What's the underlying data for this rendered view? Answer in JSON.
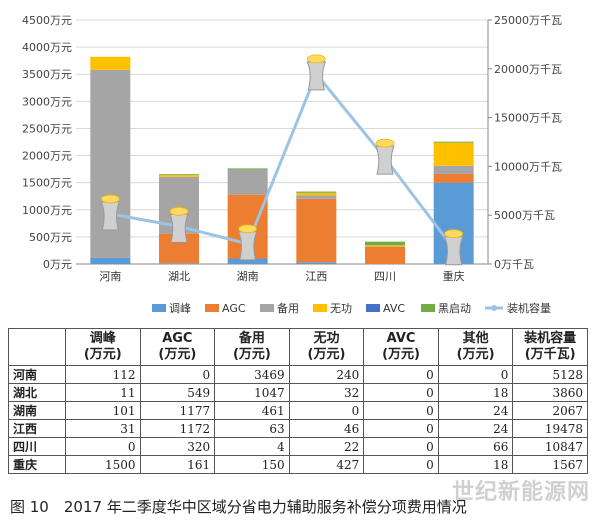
{
  "chart_data": {
    "type": "bar",
    "stacked": true,
    "categories": [
      "河南",
      "湖北",
      "湖南",
      "江西",
      "四川",
      "重庆"
    ],
    "series": [
      {
        "name": "调峰",
        "color": "#5b9bd5",
        "values": [
          112,
          11,
          101,
          31,
          0,
          1500
        ]
      },
      {
        "name": "AGC",
        "color": "#ed7d31",
        "values": [
          0,
          549,
          1177,
          1172,
          320,
          161
        ]
      },
      {
        "name": "备用",
        "color": "#a5a5a5",
        "values": [
          3469,
          1047,
          461,
          63,
          4,
          150
        ]
      },
      {
        "name": "无功",
        "color": "#ffc000",
        "values": [
          240,
          32,
          0,
          46,
          22,
          427
        ]
      },
      {
        "name": "AVC",
        "color": "#4472c4",
        "values": [
          0,
          0,
          0,
          0,
          0,
          0
        ]
      },
      {
        "name": "黑启动",
        "color": "#70ad47",
        "values": [
          0,
          18,
          24,
          24,
          66,
          18
        ]
      }
    ],
    "line_series": {
      "name": "装机容量",
      "color": "#9dc3e6",
      "axis": "right",
      "values": [
        5128,
        3860,
        2067,
        19478,
        10847,
        1567
      ]
    },
    "y_left": {
      "ticks": [
        "0万元",
        "500万元",
        "1000万元",
        "1500万元",
        "2000万元",
        "2500万元",
        "3000万元",
        "3500万元",
        "4000万元",
        "4500万元"
      ],
      "ylim": [
        0,
        4500
      ]
    },
    "y_right": {
      "ticks": [
        "0万千瓦",
        "5000万千瓦",
        "10000万千瓦",
        "15000万千瓦",
        "20000万千瓦",
        "25000万千瓦"
      ],
      "ylim": [
        0,
        25000
      ]
    },
    "legend_position": "bottom"
  },
  "table": {
    "headers": [
      {
        "line1": "",
        "line2": ""
      },
      {
        "line1": "调峰",
        "line2": "(万元)"
      },
      {
        "line1": "AGC",
        "line2": "(万元)"
      },
      {
        "line1": "备用",
        "line2": "(万元)"
      },
      {
        "line1": "无功",
        "line2": "(万元)"
      },
      {
        "line1": "AVC",
        "line2": "(万元)"
      },
      {
        "line1": "其他",
        "line2": "(万元)"
      },
      {
        "line1": "装机容量",
        "line2": "(万千瓦)"
      }
    ],
    "rows": [
      [
        "河南",
        "112",
        "0",
        "3469",
        "240",
        "0",
        "0",
        "5128"
      ],
      [
        "湖北",
        "11",
        "549",
        "1047",
        "32",
        "0",
        "18",
        "3860"
      ],
      [
        "湖南",
        "101",
        "1177",
        "461",
        "0",
        "0",
        "24",
        "2067"
      ],
      [
        "江西",
        "31",
        "1172",
        "63",
        "46",
        "0",
        "24",
        "19478"
      ],
      [
        "四川",
        "0",
        "320",
        "4",
        "22",
        "0",
        "66",
        "10847"
      ],
      [
        "重庆",
        "1500",
        "161",
        "150",
        "427",
        "0",
        "18",
        "1567"
      ]
    ]
  },
  "caption": "图 10　2017 年二季度华中区域分省电力辅助服务补偿分项费用情况",
  "watermark": "世纪新能源网"
}
